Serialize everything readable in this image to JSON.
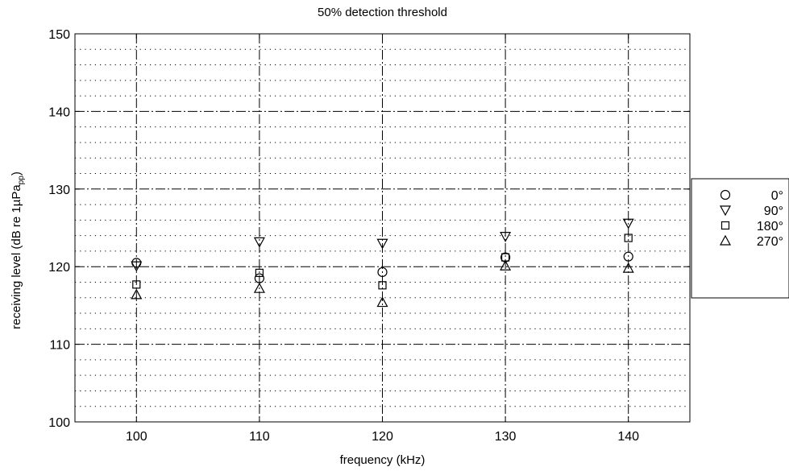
{
  "chart_data": {
    "type": "scatter",
    "title": "50% detection threshold",
    "xlabel": "frequency (kHz)",
    "ylabel": {
      "text": "receiving level (dB re 1µPa",
      "subscript": "pp",
      "suffix": ")"
    },
    "xlim": [
      95,
      145
    ],
    "ylim": [
      100,
      150
    ],
    "x_ticks": [
      100,
      110,
      120,
      130,
      140
    ],
    "y_ticks": [
      100,
      110,
      120,
      130,
      140,
      150
    ],
    "grid": true,
    "legend_position": "right",
    "series": [
      {
        "name": "0°",
        "marker": "circle",
        "x": [
          100,
          110,
          120,
          130,
          140
        ],
        "y": [
          120.5,
          118.5,
          119.3,
          121.2,
          121.3
        ]
      },
      {
        "name": "90°",
        "marker": "triangle-down",
        "x": [
          100,
          110,
          120,
          130,
          140
        ],
        "y": [
          120.1,
          123.2,
          123.0,
          123.9,
          125.6
        ]
      },
      {
        "name": "180°",
        "marker": "square",
        "x": [
          100,
          110,
          120,
          130,
          140
        ],
        "y": [
          117.7,
          119.2,
          117.6,
          121.2,
          123.7
        ]
      },
      {
        "name": "270°",
        "marker": "triangle-up",
        "x": [
          100,
          110,
          120,
          130,
          140
        ],
        "y": [
          116.4,
          117.2,
          115.4,
          120.1,
          119.8
        ]
      }
    ]
  }
}
